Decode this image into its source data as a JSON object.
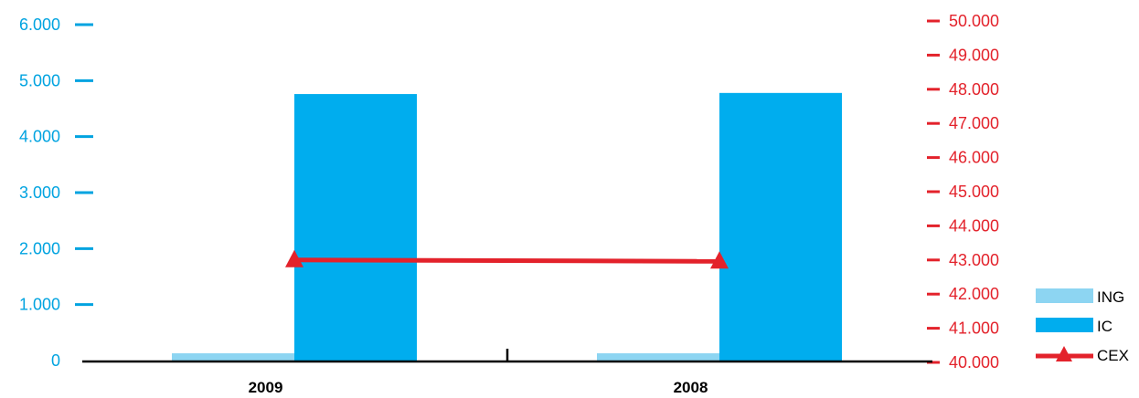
{
  "chart_data": {
    "type": "bar",
    "categories": [
      "2009",
      "2008"
    ],
    "series": [
      {
        "name": "ING",
        "axis": "left",
        "kind": "bar",
        "color": "#8dd5f2",
        "values": [
          130,
          130
        ]
      },
      {
        "name": "IC",
        "axis": "left",
        "kind": "bar",
        "color": "#00adee",
        "values": [
          4760,
          4780
        ]
      },
      {
        "name": "CEX",
        "axis": "right",
        "kind": "line",
        "marker": "triangle",
        "color": "#e3222b",
        "values": [
          43000,
          42960
        ]
      }
    ],
    "left_axis": {
      "ylim": [
        0,
        6000
      ],
      "ticks": [
        {
          "value": 0,
          "label": "0"
        },
        {
          "value": 1000,
          "label": "1.000"
        },
        {
          "value": 2000,
          "label": "2.000"
        },
        {
          "value": 3000,
          "label": "3.000"
        },
        {
          "value": 4000,
          "label": "4.000"
        },
        {
          "value": 5000,
          "label": "5.000"
        },
        {
          "value": 6000,
          "label": "6.000"
        }
      ],
      "color": "#00a3e0"
    },
    "right_axis": {
      "ylim": [
        40000,
        50000
      ],
      "ticks": [
        {
          "value": 40000,
          "label": "40.000"
        },
        {
          "value": 41000,
          "label": "41.000"
        },
        {
          "value": 42000,
          "label": "42.000"
        },
        {
          "value": 43000,
          "label": "43.000"
        },
        {
          "value": 44000,
          "label": "44.000"
        },
        {
          "value": 45000,
          "label": "45.000"
        },
        {
          "value": 46000,
          "label": "46.000"
        },
        {
          "value": 47000,
          "label": "47.000"
        },
        {
          "value": 48000,
          "label": "48.000"
        },
        {
          "value": 49000,
          "label": "49.000"
        },
        {
          "value": 50000,
          "label": "50.000"
        }
      ],
      "color": "#e3222b"
    },
    "legend_position": "bottom-right",
    "grid": false
  }
}
